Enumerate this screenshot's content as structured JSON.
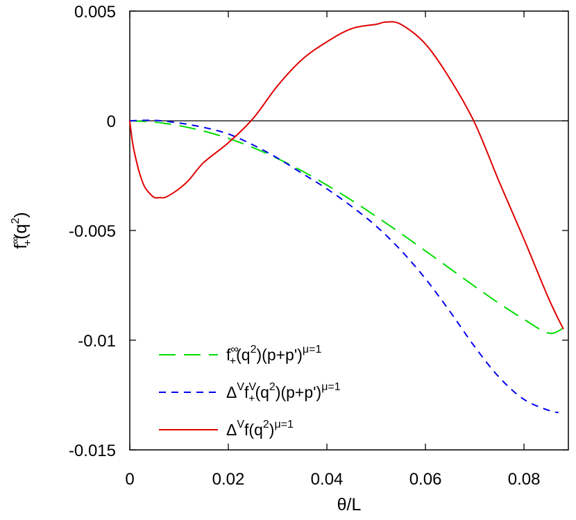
{
  "chart_data": {
    "type": "line",
    "xlabel": "θ/L",
    "ylabel": "f∞+(q2)",
    "xlim": [
      0,
      0.089
    ],
    "ylim": [
      -0.015,
      0.005
    ],
    "x_ticks": [
      "0",
      "0.02",
      "0.04",
      "0.06",
      "0.08"
    ],
    "y_ticks": [
      "0.005",
      "0",
      "-0.005",
      "-0.01",
      "-0.015"
    ],
    "x_tick_values": [
      0,
      0.02,
      0.04,
      0.06,
      0.08
    ],
    "y_tick_values": [
      0.005,
      0,
      -0.005,
      -0.01,
      -0.015
    ],
    "grid": false,
    "legend_position": "bottom-left",
    "zero_line": true,
    "series": [
      {
        "name": "f∞+(q2)(p+p')μ=1",
        "color": "#00dd00",
        "style": "long-dash",
        "x": [
          0,
          0.005,
          0.01,
          0.015,
          0.02,
          0.025,
          0.03,
          0.035,
          0.04,
          0.045,
          0.05,
          0.055,
          0.06,
          0.065,
          0.07,
          0.075,
          0.08,
          0.085,
          0.088
        ],
        "y": [
          0,
          -6e-05,
          -0.00022,
          -0.00047,
          -0.0008,
          -0.00122,
          -0.00172,
          -0.00229,
          -0.00293,
          -0.00362,
          -0.00436,
          -0.00513,
          -0.00593,
          -0.00674,
          -0.00755,
          -0.00833,
          -0.00905,
          -0.00968,
          -0.00945
        ]
      },
      {
        "name": "ΔVfV+(q2)(p+p')μ=1",
        "color": "#0000ee",
        "style": "short-dash",
        "x": [
          0,
          0.005,
          0.01,
          0.015,
          0.02,
          0.025,
          0.03,
          0.035,
          0.04,
          0.045,
          0.05,
          0.055,
          0.06,
          0.065,
          0.07,
          0.075,
          0.08,
          0.085,
          0.087
        ],
        "y": [
          0,
          2e-05,
          -0.0001,
          -0.0003,
          -0.0006,
          -0.0011,
          -0.0017,
          -0.0024,
          -0.0031,
          -0.0039,
          -0.0048,
          -0.0059,
          -0.0072,
          -0.0087,
          -0.0103,
          -0.0117,
          -0.0127,
          -0.0132,
          -0.0133
        ]
      },
      {
        "name": "ΔVf(q2)μ=1",
        "color": "#e00000",
        "style": "solid",
        "x": [
          0,
          0.0005,
          0.001,
          0.002,
          0.003,
          0.004,
          0.005,
          0.006,
          0.007,
          0.008,
          0.01,
          0.012,
          0.015,
          0.02,
          0.025,
          0.03,
          0.035,
          0.04,
          0.045,
          0.05,
          0.052,
          0.055,
          0.06,
          0.065,
          0.07,
          0.075,
          0.08,
          0.085,
          0.088
        ],
        "y": [
          0,
          -0.0009,
          -0.0015,
          -0.0024,
          -0.003,
          -0.0033,
          -0.0035,
          -0.0035,
          -0.0035,
          -0.0034,
          -0.0031,
          -0.0027,
          -0.0019,
          -0.001,
          0.0001,
          0.0016,
          0.0028,
          0.0036,
          0.0042,
          0.0044,
          0.0045,
          0.0044,
          0.0035,
          0.0019,
          -0.0001,
          -0.0028,
          -0.0054,
          -0.0081,
          -0.0095
        ]
      }
    ]
  },
  "legend": {
    "green": {
      "main": "f",
      "sup1": "∞",
      "sub1": "+",
      "rest1": "(q",
      "sup2": "2",
      "rest2": ")(p+p')",
      "sup3": "μ=1"
    },
    "blue": {
      "delta": "Δ",
      "supV": "V",
      "f": "f",
      "sub1": "+",
      "supV2": "V",
      "rest1": "(q",
      "sup2": "2",
      "rest2": ")(p+p')",
      "sup3": "μ=1"
    },
    "red": {
      "delta": "Δ",
      "supV": "V",
      "rest1": "f(q",
      "sup2": "2",
      "rest2": ")",
      "sup3": "μ=1"
    }
  },
  "axis_label_parts": {
    "x": "θ/L",
    "y_main": "f",
    "y_sup": "∞",
    "y_sub": "+",
    "y_rest1": "(q",
    "y_sup2": "2",
    "y_rest2": ")"
  }
}
